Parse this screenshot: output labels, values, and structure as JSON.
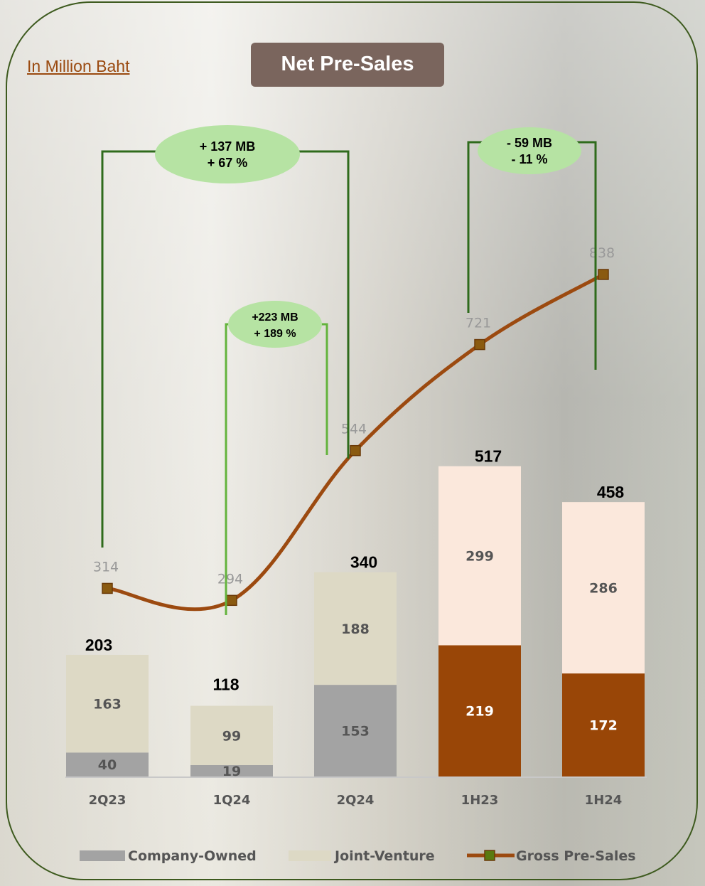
{
  "unit_label": "In Million Baht",
  "title": "Net Pre-Sales",
  "colors": {
    "company_owned": "#a3a3a3",
    "joint_venture": "#ddd9c5",
    "h_company_owned": "#994607",
    "h_joint_venture": "#fbe8dc",
    "gross_line": "#9c4a10",
    "bracket_dark": "#2f6b1c",
    "bracket_light": "#63b33c",
    "bubble": "#b6e3a3"
  },
  "chart_data": {
    "type": "bar",
    "stacked": true,
    "categories": [
      "2Q23",
      "1Q24",
      "2Q24",
      "1H23",
      "1H24"
    ],
    "series": [
      {
        "name": "Company-Owned",
        "values": [
          40,
          19,
          153,
          219,
          172
        ]
      },
      {
        "name": "Joint-Venture",
        "values": [
          163,
          99,
          188,
          299,
          286
        ]
      }
    ],
    "totals": [
      "203",
      "118",
      "340",
      "517",
      "458"
    ],
    "line": {
      "name": "Gross Pre-Sales",
      "values": [
        314,
        294,
        544,
        721,
        838
      ]
    },
    "ylim": [
      0,
      950
    ],
    "legend": [
      "Company-Owned",
      "Joint-Venture",
      "Gross Pre-Sales"
    ],
    "legend_position": "bottom",
    "annotations": [
      {
        "from": "2Q23",
        "to": "2Q24",
        "line1": "+ 137 MB",
        "line2": "+ 67 %"
      },
      {
        "from": "1Q24",
        "to": "2Q24",
        "line1": "+223 MB",
        "line2": "+ 189 %"
      },
      {
        "from": "1H23",
        "to": "1H24",
        "line1": "- 59 MB",
        "line2": "- 11 %"
      }
    ]
  }
}
